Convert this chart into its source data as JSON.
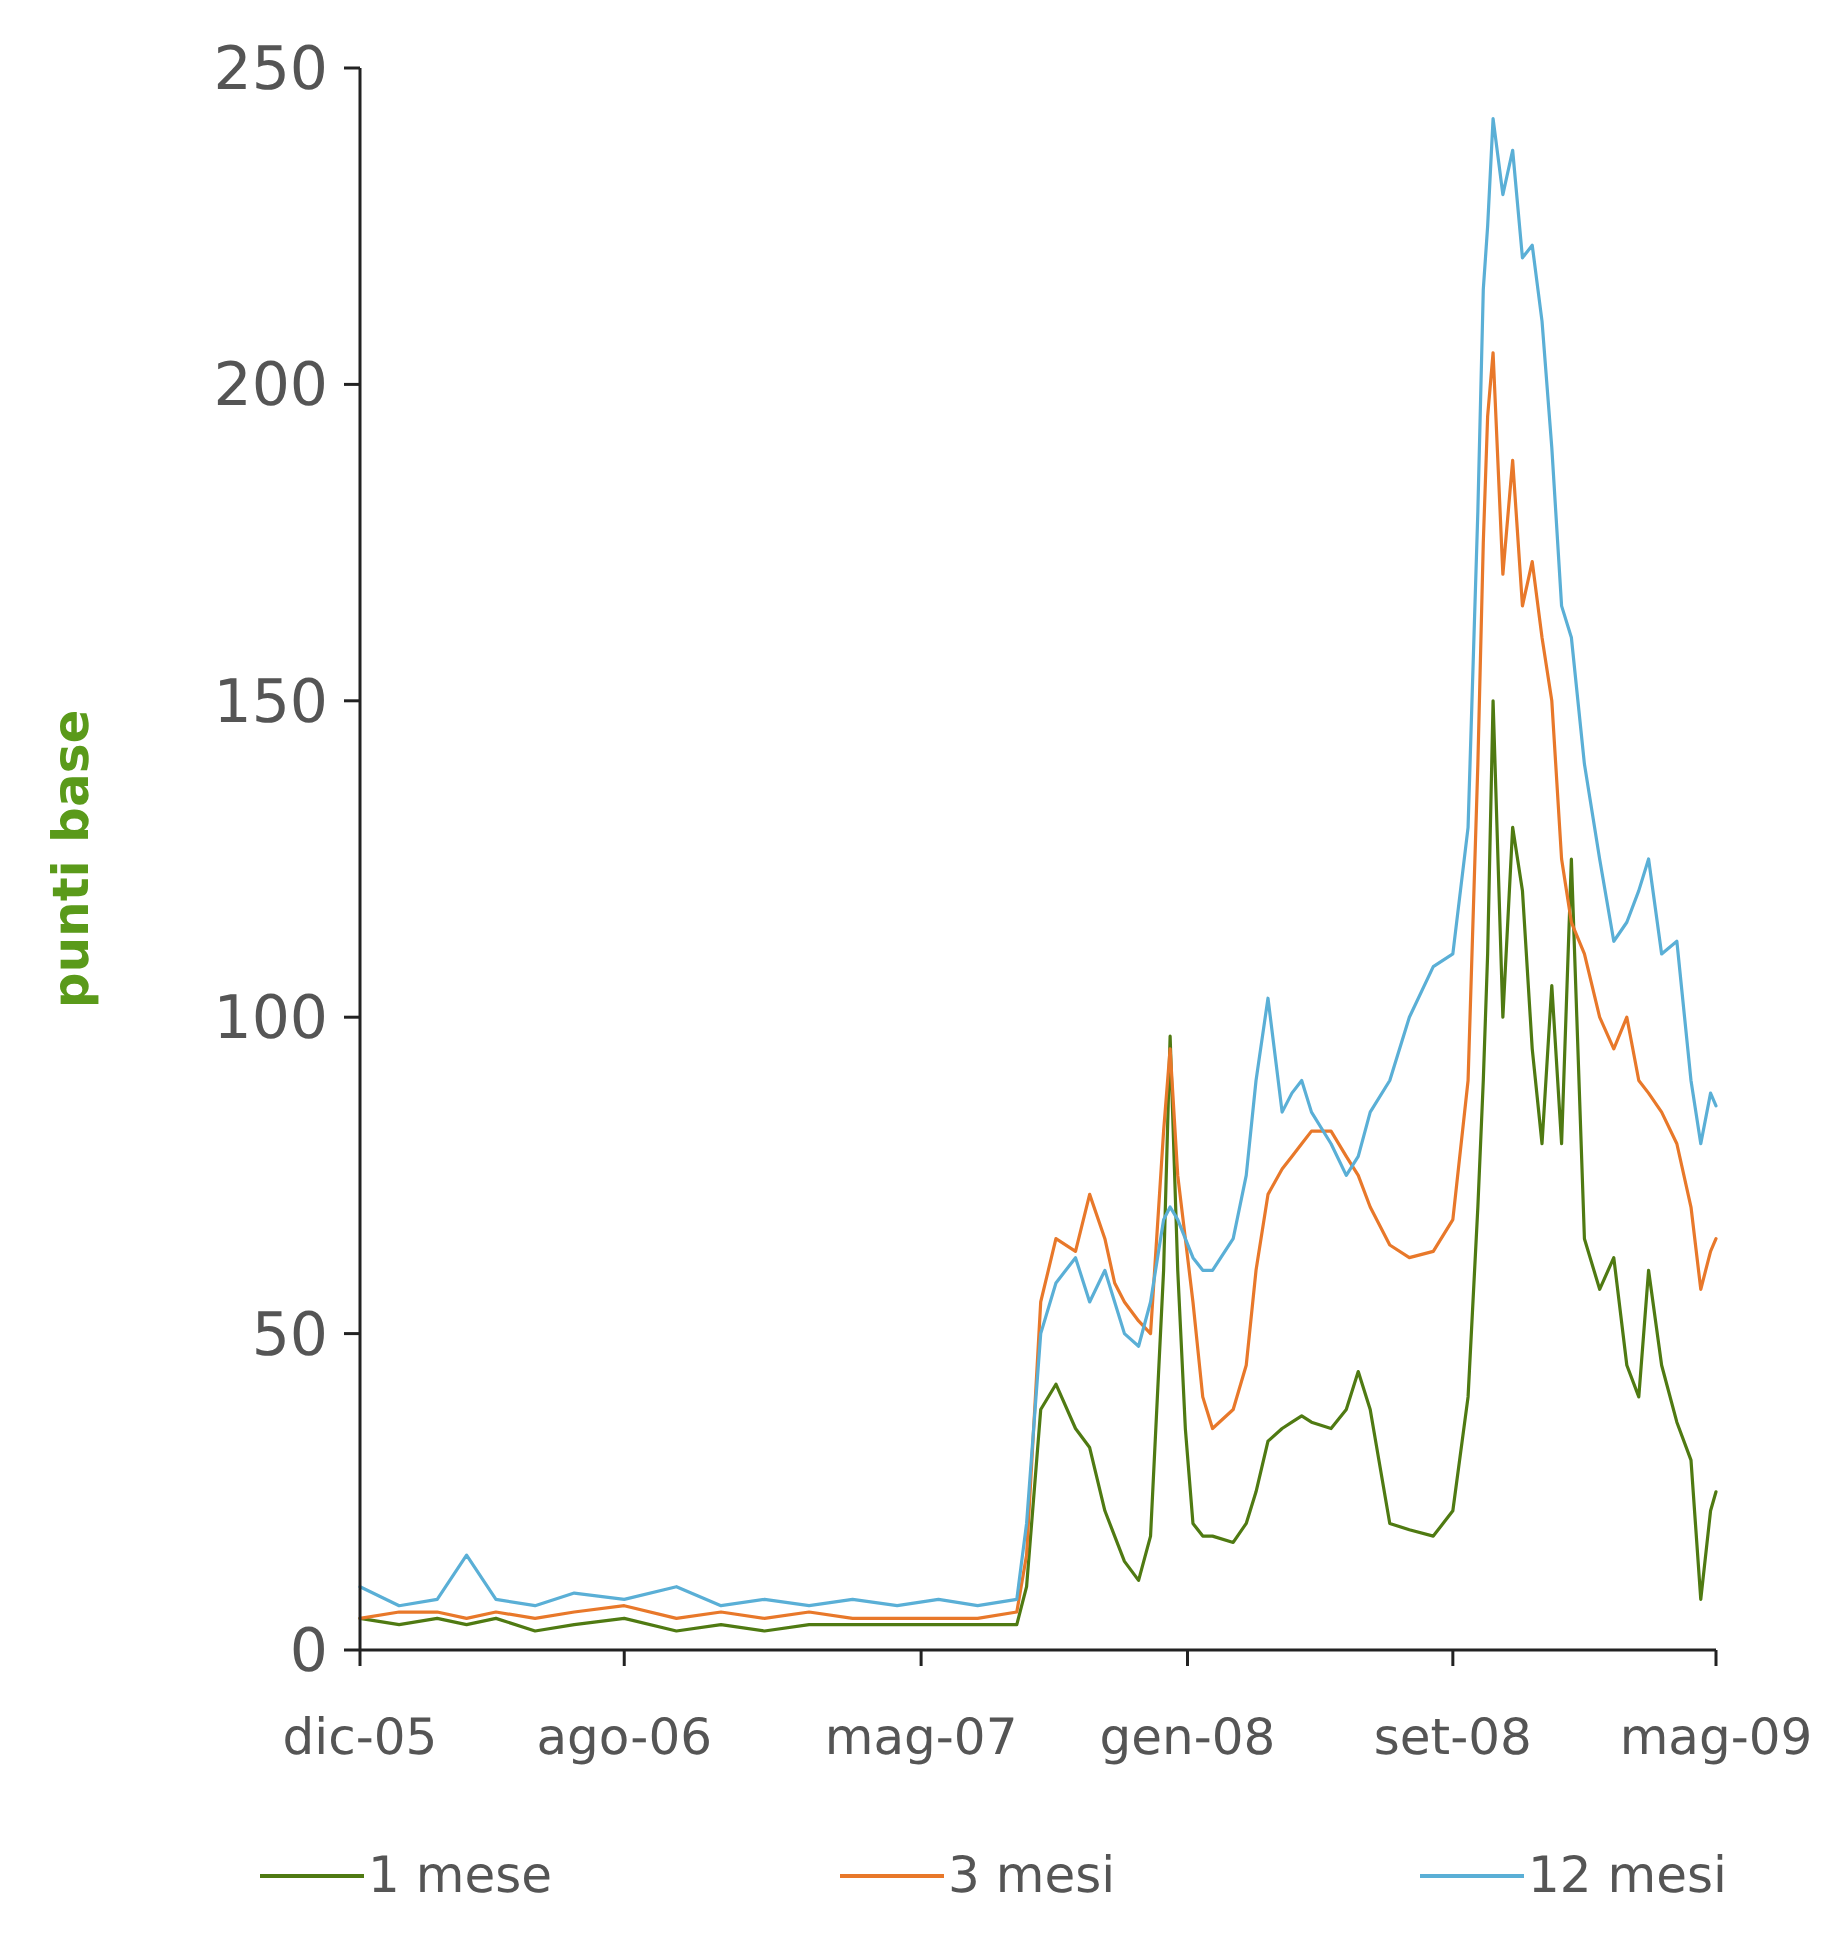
{
  "chart_data": {
    "type": "line",
    "ylabel": "punti base",
    "legend": "bottom",
    "grid": false,
    "marker": "none",
    "line_style": "solid",
    "x": [
      "2005-12-01",
      "2006-01-06",
      "2006-02-10",
      "2006-03-09",
      "2006-04-05",
      "2006-05-11",
      "2006-06-16",
      "2006-08-01",
      "2006-09-18",
      "2006-10-29",
      "2006-12-08",
      "2007-01-18",
      "2007-02-27",
      "2007-04-09",
      "2007-05-17",
      "2007-06-22",
      "2007-07-28",
      "2007-08-06",
      "2007-08-19",
      "2007-09-02",
      "2007-09-20",
      "2007-10-03",
      "2007-10-17",
      "2007-10-26",
      "2007-11-04",
      "2007-11-17",
      "2007-11-28",
      "2007-12-10",
      "2007-12-16",
      "2007-12-23",
      "2007-12-30",
      "2008-01-06",
      "2008-01-15",
      "2008-01-24",
      "2008-02-12",
      "2008-02-24",
      "2008-03-04",
      "2008-03-15",
      "2008-03-28",
      "2008-04-06",
      "2008-04-15",
      "2008-04-24",
      "2008-05-12",
      "2008-05-26",
      "2008-06-06",
      "2008-06-17",
      "2008-07-05",
      "2008-07-23",
      "2008-08-14",
      "2008-09-01",
      "2008-09-15",
      "2008-09-24",
      "2008-09-29",
      "2008-10-03",
      "2008-10-08",
      "2008-10-17",
      "2008-10-26",
      "2008-11-04",
      "2008-11-13",
      "2008-11-22",
      "2008-12-01",
      "2008-12-10",
      "2008-12-19",
      "2008-12-31",
      "2009-01-14",
      "2009-01-27",
      "2009-02-08",
      "2009-02-19",
      "2009-02-28",
      "2009-03-12",
      "2009-03-26",
      "2009-04-08",
      "2009-04-17",
      "2009-04-26",
      "2009-05-01"
    ],
    "xlim": [
      "2005-12-01",
      "2009-05-01"
    ],
    "xticks": [
      {
        "value": "2005-12-01",
        "label": "dic-05"
      },
      {
        "value": "2006-08-01",
        "label": "ago-06"
      },
      {
        "value": "2007-05-01",
        "label": "mag-07"
      },
      {
        "value": "2008-01-01",
        "label": "gen-08"
      },
      {
        "value": "2008-09-01",
        "label": "set-08"
      },
      {
        "value": "2009-05-01",
        "label": "mag-09"
      }
    ],
    "ylim": [
      0,
      250
    ],
    "yticks": [
      0,
      50,
      100,
      150,
      200,
      250
    ],
    "series": [
      {
        "name": "1 mese",
        "color": "#4f7a12",
        "values": [
          5,
          4,
          5,
          4,
          5,
          3,
          4,
          5,
          3,
          4,
          3,
          4,
          4,
          4,
          4,
          4,
          4,
          10,
          38,
          42,
          35,
          32,
          22,
          18,
          14,
          11,
          18,
          60,
          97,
          60,
          35,
          20,
          18,
          18,
          17,
          20,
          25,
          33,
          35,
          36,
          37,
          36,
          35,
          38,
          44,
          38,
          20,
          19,
          18,
          22,
          40,
          70,
          90,
          110,
          150,
          100,
          130,
          120,
          95,
          80,
          105,
          80,
          125,
          65,
          57,
          62,
          45,
          40,
          60,
          45,
          36,
          30,
          8,
          22,
          25
        ]
      },
      {
        "name": "3 mesi",
        "color": "#e8782a",
        "values": [
          5,
          6,
          6,
          5,
          6,
          5,
          6,
          7,
          5,
          6,
          5,
          6,
          5,
          5,
          5,
          5,
          6,
          15,
          55,
          65,
          63,
          72,
          65,
          58,
          55,
          52,
          50,
          82,
          95,
          75,
          65,
          55,
          40,
          35,
          38,
          45,
          60,
          72,
          76,
          78,
          80,
          82,
          82,
          78,
          75,
          70,
          64,
          62,
          63,
          68,
          90,
          140,
          175,
          195,
          205,
          170,
          188,
          165,
          172,
          160,
          150,
          125,
          115,
          110,
          100,
          95,
          100,
          90,
          88,
          85,
          80,
          70,
          57,
          63,
          65
        ]
      },
      {
        "name": "12 mesi",
        "color": "#5aafd6",
        "values": [
          10,
          7,
          8,
          15,
          8,
          7,
          9,
          8,
          10,
          7,
          8,
          7,
          8,
          7,
          8,
          7,
          8,
          20,
          50,
          58,
          62,
          55,
          60,
          55,
          50,
          48,
          55,
          68,
          70,
          68,
          65,
          62,
          60,
          60,
          65,
          75,
          90,
          103,
          85,
          88,
          90,
          85,
          80,
          75,
          78,
          85,
          90,
          100,
          108,
          110,
          130,
          180,
          215,
          225,
          242,
          230,
          237,
          220,
          222,
          210,
          190,
          165,
          160,
          140,
          125,
          112,
          115,
          120,
          125,
          110,
          112,
          90,
          80,
          88,
          86
        ]
      }
    ]
  }
}
